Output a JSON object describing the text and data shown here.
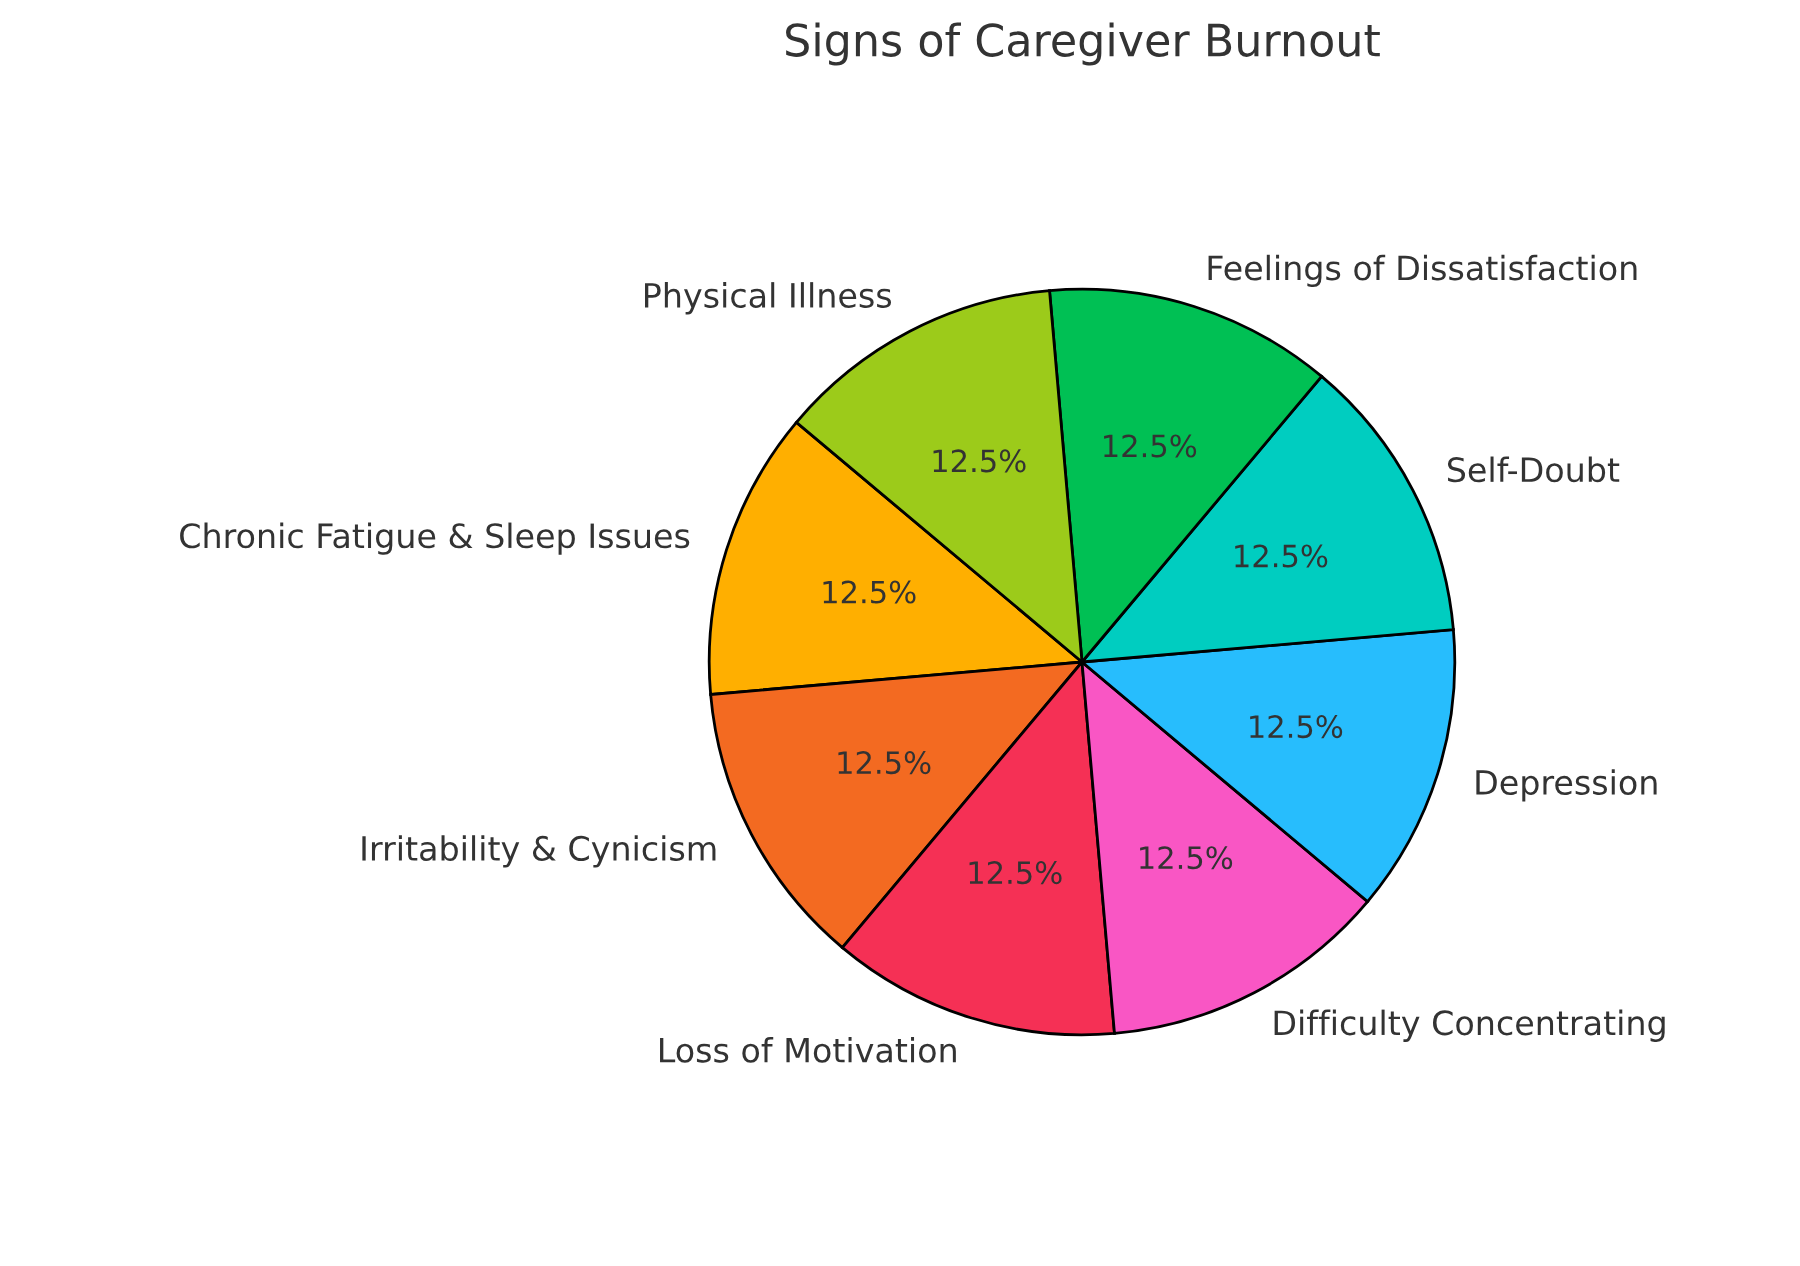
{
  "chart_data": {
    "type": "pie",
    "title": "Signs of Caregiver Burnout",
    "categories": [
      "Chronic Fatigue & Sleep Issues",
      "Irritability & Cynicism",
      "Loss of Motivation",
      "Difficulty Concentrating",
      "Depression",
      "Self-Doubt",
      "Feelings of Dissatisfaction",
      "Physical Illness"
    ],
    "values": [
      12.5,
      12.5,
      12.5,
      12.5,
      12.5,
      12.5,
      12.5,
      12.5
    ],
    "value_labels": [
      "12.5%",
      "12.5%",
      "12.5%",
      "12.5%",
      "12.5%",
      "12.5%",
      "12.5%",
      "12.5%"
    ],
    "colors": [
      "#ffaf00",
      "#f36a21",
      "#f53055",
      "#f956c4",
      "#27bdfd",
      "#00cdc0",
      "#00c054",
      "#9ccb1a"
    ]
  }
}
